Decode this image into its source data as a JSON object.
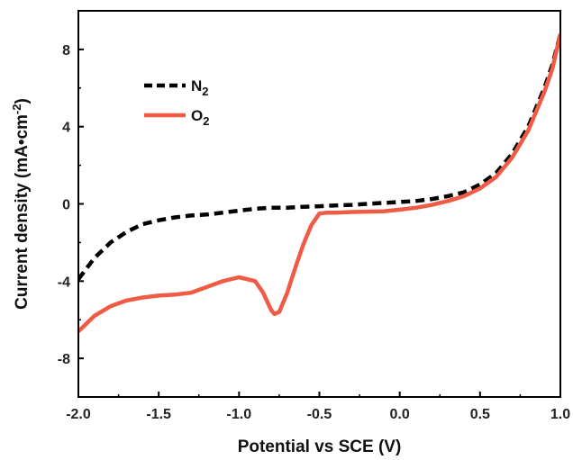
{
  "chart_data": {
    "type": "line",
    "xlabel": "Potential vs SCE (V)",
    "ylabel": {
      "main": "Current density (mA•cm",
      "sup": "-2",
      "end": ")"
    },
    "xlim": [
      -2.0,
      1.0
    ],
    "ylim": [
      -10,
      10
    ],
    "x_ticks": [
      -2.0,
      -1.5,
      -1.0,
      -0.5,
      0.0,
      0.5,
      1.0
    ],
    "x_tick_labels": [
      "-2.0",
      "-1.5",
      "-1.0",
      "-0.5",
      "0.0",
      "0.5",
      "1.0"
    ],
    "y_ticks": [
      -8,
      -4,
      0,
      4,
      8
    ],
    "y_tick_labels": [
      "-8",
      "-4",
      "0",
      "4",
      "8"
    ],
    "grid": false,
    "legend_position": "top-left",
    "series": [
      {
        "name": {
          "main": "N",
          "sub": "2"
        },
        "color": "#000000",
        "style": "dashed",
        "x": [
          -2.0,
          -1.9,
          -1.8,
          -1.7,
          -1.6,
          -1.5,
          -1.4,
          -1.3,
          -1.2,
          -1.1,
          -1.0,
          -0.9,
          -0.8,
          -0.7,
          -0.6,
          -0.5,
          -0.4,
          -0.3,
          -0.2,
          -0.1,
          0.0,
          0.1,
          0.2,
          0.3,
          0.4,
          0.5,
          0.6,
          0.7,
          0.8,
          0.9,
          0.95,
          1.0
        ],
        "y": [
          -3.9,
          -2.8,
          -2.0,
          -1.45,
          -1.05,
          -0.85,
          -0.7,
          -0.6,
          -0.55,
          -0.45,
          -0.35,
          -0.25,
          -0.2,
          -0.2,
          -0.15,
          -0.12,
          -0.08,
          -0.05,
          0.0,
          0.05,
          0.1,
          0.15,
          0.25,
          0.4,
          0.6,
          1.0,
          1.6,
          2.6,
          4.0,
          6.0,
          7.2,
          8.8
        ]
      },
      {
        "name": {
          "main": "O",
          "sub": "2"
        },
        "color": "#ef5b45",
        "style": "solid",
        "x": [
          -2.0,
          -1.9,
          -1.8,
          -1.7,
          -1.6,
          -1.5,
          -1.4,
          -1.3,
          -1.2,
          -1.1,
          -1.0,
          -0.9,
          -0.85,
          -0.8,
          -0.78,
          -0.75,
          -0.7,
          -0.65,
          -0.6,
          -0.55,
          -0.5,
          -0.45,
          -0.4,
          -0.3,
          -0.2,
          -0.1,
          0.0,
          0.1,
          0.2,
          0.3,
          0.4,
          0.5,
          0.6,
          0.7,
          0.8,
          0.9,
          0.95,
          1.0
        ],
        "y": [
          -6.6,
          -5.8,
          -5.3,
          -5.0,
          -4.85,
          -4.75,
          -4.7,
          -4.6,
          -4.3,
          -4.0,
          -3.8,
          -4.0,
          -4.6,
          -5.5,
          -5.7,
          -5.6,
          -4.6,
          -3.3,
          -2.1,
          -1.1,
          -0.5,
          -0.45,
          -0.45,
          -0.42,
          -0.4,
          -0.38,
          -0.3,
          -0.2,
          -0.05,
          0.15,
          0.4,
          0.8,
          1.4,
          2.4,
          3.8,
          5.8,
          7.0,
          8.8
        ]
      }
    ]
  }
}
